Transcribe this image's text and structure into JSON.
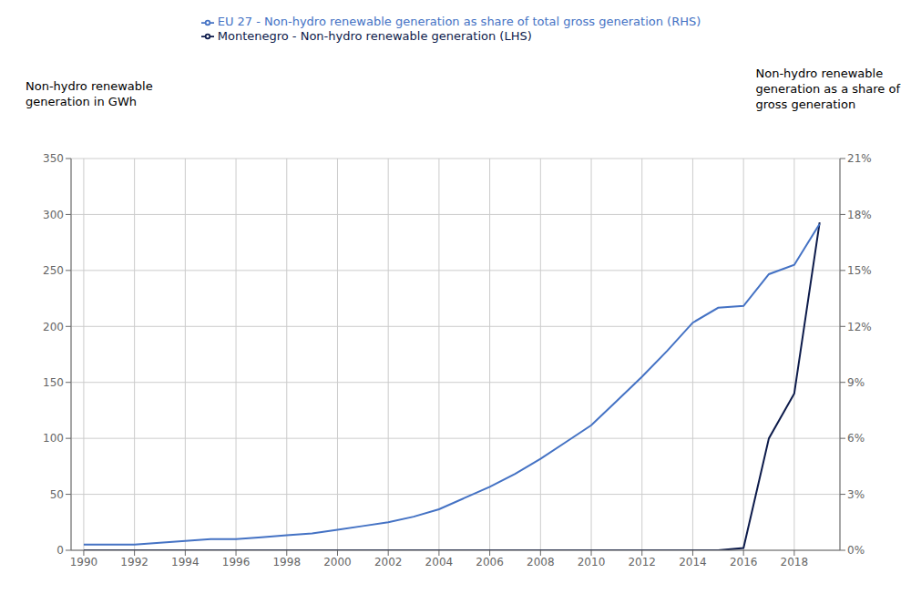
{
  "chart_data": {
    "type": "line",
    "x": [
      1990,
      1991,
      1992,
      1993,
      1994,
      1995,
      1996,
      1997,
      1998,
      1999,
      2000,
      2001,
      2002,
      2003,
      2004,
      2005,
      2006,
      2007,
      2008,
      2009,
      2010,
      2011,
      2012,
      2013,
      2014,
      2015,
      2016,
      2017,
      2018,
      2019
    ],
    "series": [
      {
        "name": "Montenegro - Non-hydro renewable generation (LHS)",
        "color": "#0d1b4b",
        "axis": "y",
        "values": [
          0,
          0,
          0,
          0,
          0,
          0,
          0,
          0,
          0,
          0,
          0,
          0,
          0,
          0,
          0,
          0,
          0,
          0,
          0,
          0,
          0,
          0,
          0,
          0,
          0,
          0,
          2,
          100,
          140,
          293
        ]
      },
      {
        "name": "EU 27 - Non-hydro renewable generation as share of total gross generation (RHS)",
        "color": "#4472c4",
        "axis": "y2",
        "values": [
          0.003,
          0.003,
          0.003,
          0.004,
          0.005,
          0.006,
          0.006,
          0.007,
          0.008,
          0.009,
          0.011,
          0.013,
          0.015,
          0.018,
          0.022,
          0.028,
          0.034,
          0.041,
          0.049,
          0.058,
          0.067,
          0.08,
          0.093,
          0.107,
          0.122,
          0.13,
          0.131,
          0.148,
          0.153,
          0.175
        ]
      }
    ],
    "ylabel": "Non-hydro renewable\ngeneration in GWh",
    "y2label": "Non-hydro renewable\ngeneration as a share of\ngross generation",
    "xlim": [
      1989.5,
      2019.8
    ],
    "xticks": [
      1990,
      1992,
      1994,
      1996,
      1998,
      2000,
      2002,
      2004,
      2006,
      2008,
      2010,
      2012,
      2014,
      2016,
      2018
    ],
    "ylim": [
      0,
      350
    ],
    "yticks": [
      0,
      50,
      100,
      150,
      200,
      250,
      300,
      350
    ],
    "y2lim": [
      0,
      0.21
    ],
    "y2ticks": [
      {
        "value": 0.0,
        "label": "0%"
      },
      {
        "value": 0.03,
        "label": "3%"
      },
      {
        "value": 0.06,
        "label": "6%"
      },
      {
        "value": 0.09,
        "label": "9%"
      },
      {
        "value": 0.12,
        "label": "12%"
      },
      {
        "value": 0.15,
        "label": "15%"
      },
      {
        "value": 0.18,
        "label": "18%"
      },
      {
        "value": 0.21,
        "label": "21%"
      }
    ],
    "grid": true,
    "legend": "top"
  }
}
